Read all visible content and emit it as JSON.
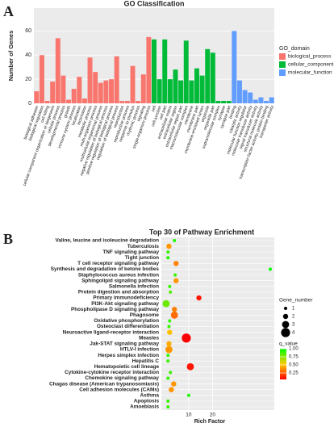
{
  "chart_data": [
    {
      "type": "bar",
      "panel": "A",
      "title": "GO Classification",
      "y_label": "Number of Genes",
      "legend_title": "GO_domain",
      "ylim": [
        0,
        79
      ],
      "yticks": [
        0,
        20,
        40,
        60
      ],
      "grid": true,
      "series": [
        {
          "name": "biological_process",
          "color": "#f8766d",
          "categories": [
            "biological adhesion",
            "biological regulation",
            "cell killing",
            "cellular component organization or biogenesis",
            "cellular process",
            "developmental process",
            "growth",
            "immune system process",
            "localization",
            "locomotion",
            "metabolic process",
            "multi-organism process",
            "multicellular organismal process",
            "negative regulation of biological process",
            "positive regulation of biological process",
            "regulation of biological process",
            "reproduction",
            "reproductive process",
            "response to stimulus",
            "rhythmic process",
            "signaling",
            "single-organism process"
          ],
          "values": [
            10,
            40,
            2,
            18,
            54,
            23,
            3,
            12,
            22,
            4,
            38,
            26,
            17,
            19,
            20,
            39,
            2,
            2,
            31,
            2,
            24,
            55
          ]
        },
        {
          "name": "cellular_component",
          "color": "#00ba38",
          "categories": [
            "cell",
            "cell junction",
            "cell part",
            "extracellular matrix",
            "extracellular region",
            "extracellular region part",
            "macromolecular complex",
            "membrane",
            "membrane part",
            "membrane-enclosed lumen",
            "organelle",
            "organelle part",
            "supramolecular complex",
            "synapse",
            "synapse part"
          ],
          "values": [
            53,
            20,
            53,
            20,
            28,
            19,
            52,
            19,
            29,
            23,
            45,
            42,
            2,
            2,
            2
          ]
        },
        {
          "name": "molecular_function",
          "color": "#619cff",
          "categories": [
            "binding",
            "catalytic activity",
            "molecular function regulator",
            "molecular transducer activity",
            "signal transducer activity",
            "structural molecule activity",
            "transcription factor activity, protein binding",
            "transporter activity"
          ],
          "values": [
            60,
            19,
            11,
            9,
            3,
            5,
            2,
            5
          ]
        }
      ]
    },
    {
      "type": "scatter",
      "panel": "B",
      "title": "Top 30 of Pathway Enrichment",
      "x_label": "Rich Factor",
      "xlim": [
        -1.5,
        46
      ],
      "xticks": [
        10,
        20
      ],
      "grid": true,
      "categories": [
        "Valine, leucine and isoleucine degradation",
        "Tuberculosis",
        "TNF signaling pathway",
        "Tight junction",
        "T cell receptor signaling pathway",
        "Synthesis and degradation of ketone bodies",
        "Staphylococcus aureus infection",
        "Sphingolipid signaling pathway",
        "Salmonella infection",
        "Protein digestion and absorption",
        "Primary immunodeficiency",
        "PI3K-Akt signaling pathway",
        "Phospholipase D signaling pathway",
        "Phagosome",
        "Oxidative phosphorylation",
        "Osteoclast differentiation",
        "Neuroactive ligand-receptor interaction",
        "Measles",
        "Jak-STAT signaling pathway",
        "HTLV-I infection",
        "Herpes simplex infection",
        "Hepatitis C",
        "Hematopoietic cell lineage",
        "Cytokine-cytokine receptor interaction",
        "Chemokine signaling pathway",
        "Chagas disease (American trypanosomiasis)",
        "Cell adhesion molecules (CAMs)",
        "Asthma",
        "Apoptosis",
        "Amoebiasis"
      ],
      "values": [
        4,
        1.7,
        1.3,
        1.3,
        4.7,
        44.3,
        4.3,
        4.7,
        2,
        2.3,
        14.3,
        0.5,
        4,
        4,
        2,
        1.7,
        2,
        9,
        1.7,
        1.7,
        1.3,
        1.3,
        10.7,
        2.3,
        1.3,
        3.7,
        2.7,
        10,
        1.3,
        1.3
      ],
      "sizes": [
        1,
        2,
        1,
        1,
        2,
        1,
        1,
        2,
        1,
        1,
        2,
        3,
        2,
        3,
        1,
        1,
        2,
        4,
        2,
        3,
        1,
        1,
        3,
        1,
        1,
        2,
        2,
        1,
        1,
        1
      ],
      "q_values": [
        0.95,
        0.4,
        0.9,
        0.95,
        0.35,
        1,
        0.9,
        0.4,
        0.9,
        0.85,
        0.1,
        0.8,
        0.35,
        0.3,
        0.9,
        0.9,
        0.5,
        0.05,
        0.45,
        0.4,
        0.9,
        0.9,
        0.1,
        0.9,
        0.9,
        0.4,
        0.4,
        0.95,
        0.9,
        0.9
      ],
      "size_legend": {
        "title": "Gene_number",
        "values": [
          1,
          2,
          3,
          4
        ]
      },
      "color_legend": {
        "title": "q_value",
        "lim": [
          0.05,
          1
        ],
        "colors": [
          "#ff0000",
          "#ffcc00",
          "#00ff00"
        ],
        "ticks": [
          {
            "value": 1,
            "label": "1.00"
          },
          {
            "value": 0.75,
            "label": "0.75"
          },
          {
            "value": 0.5,
            "label": "0.50"
          },
          {
            "value": 0.25,
            "label": "0.25"
          }
        ]
      }
    }
  ]
}
